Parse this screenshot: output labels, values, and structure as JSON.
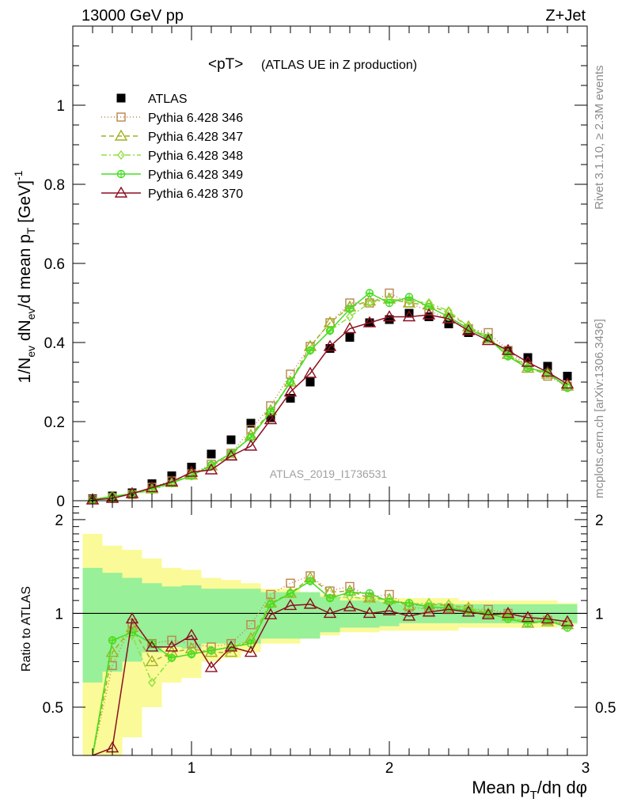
{
  "header": {
    "left": "13000 GeV pp",
    "right": "Z+Jet"
  },
  "side": {
    "rivet": "Rivet 3.1.10, ≥ 2.3M events",
    "mcplots": "mcplots.cern.ch [arXiv:1306.3436]"
  },
  "chart_data": [
    {
      "type": "scatter",
      "title": "<pT>",
      "subtitle": "(ATLAS UE in Z production)",
      "watermark": "ATLAS_2019_I1736531",
      "xlabel": "Mean p_T/dη dφ",
      "ylabel": "1/N_ev dN_ev/d mean p_T [GeV]^-1",
      "xlim": [
        0.4,
        3.0
      ],
      "ylim": [
        0.0,
        1.2
      ],
      "x_ticks": [
        "1",
        "2",
        "3"
      ],
      "y_ticks": [
        "0",
        "0.2",
        "0.4",
        "0.6",
        "0.8",
        "1"
      ],
      "legend_position": "top-left",
      "x": [
        0.5,
        0.6,
        0.7,
        0.8,
        0.9,
        1.0,
        1.1,
        1.2,
        1.3,
        1.4,
        1.5,
        1.6,
        1.7,
        1.8,
        1.9,
        2.0,
        2.1,
        2.2,
        2.3,
        2.4,
        2.5,
        2.6,
        2.7,
        2.8,
        2.9
      ],
      "series": [
        {
          "name": "ATLAS",
          "color": "#000000",
          "marker": "filled-square",
          "line": "none",
          "values": [
            0.005,
            0.012,
            0.02,
            0.043,
            0.063,
            0.085,
            0.118,
            0.154,
            0.196,
            0.21,
            0.259,
            0.3,
            0.385,
            0.413,
            0.45,
            0.458,
            0.474,
            0.465,
            0.447,
            0.425,
            0.41,
            0.38,
            0.362,
            0.34,
            0.315
          ]
        },
        {
          "name": "Pythia 6.428 346",
          "color": "#b8864e",
          "marker": "open-square",
          "line": "dotted",
          "values": [
            0.003,
            0.008,
            0.016,
            0.034,
            0.05,
            0.068,
            0.092,
            0.12,
            0.18,
            0.24,
            0.32,
            0.39,
            0.45,
            0.5,
            0.5,
            0.525,
            0.5,
            0.48,
            0.46,
            0.435,
            0.425,
            0.38,
            0.34,
            0.315,
            0.29
          ]
        },
        {
          "name": "Pythia 6.428 347",
          "color": "#a3b020",
          "marker": "open-triangle",
          "line": "dashed",
          "values": [
            0.003,
            0.009,
            0.018,
            0.03,
            0.046,
            0.065,
            0.088,
            0.114,
            0.165,
            0.228,
            0.3,
            0.39,
            0.45,
            0.49,
            0.505,
            0.51,
            0.5,
            0.495,
            0.475,
            0.44,
            0.41,
            0.37,
            0.335,
            0.32,
            0.29
          ]
        },
        {
          "name": "Pythia 6.428 348",
          "color": "#8fe040",
          "marker": "open-diamond",
          "line": "dashdot",
          "values": [
            0.003,
            0.01,
            0.017,
            0.026,
            0.045,
            0.063,
            0.09,
            0.12,
            0.16,
            0.225,
            0.3,
            0.38,
            0.43,
            0.465,
            0.5,
            0.51,
            0.505,
            0.5,
            0.48,
            0.44,
            0.415,
            0.37,
            0.34,
            0.32,
            0.29
          ]
        },
        {
          "name": "Pythia 6.428 349",
          "color": "#44dd22",
          "marker": "open-circle-cross",
          "line": "solid",
          "values": [
            0.003,
            0.011,
            0.018,
            0.03,
            0.045,
            0.063,
            0.09,
            0.12,
            0.16,
            0.225,
            0.3,
            0.38,
            0.43,
            0.485,
            0.525,
            0.5,
            0.515,
            0.49,
            0.465,
            0.435,
            0.41,
            0.365,
            0.335,
            0.325,
            0.285
          ]
        },
        {
          "name": "Pythia 6.428 370",
          "color": "#8b0f20",
          "marker": "open-triangle",
          "line": "solid",
          "values": [
            0.002,
            0.006,
            0.018,
            0.033,
            0.048,
            0.072,
            0.078,
            0.113,
            0.138,
            0.205,
            0.275,
            0.322,
            0.39,
            0.435,
            0.45,
            0.465,
            0.465,
            0.47,
            0.46,
            0.43,
            0.405,
            0.38,
            0.35,
            0.325,
            0.295
          ]
        }
      ]
    },
    {
      "type": "scatter",
      "ylabel": "Ratio to ATLAS",
      "xlim": [
        0.4,
        3.0
      ],
      "ylim": [
        0.35,
        2.3
      ],
      "y_ticks": [
        "0.5",
        "1",
        "2"
      ],
      "reference_line": 1,
      "x": [
        0.5,
        0.6,
        0.7,
        0.8,
        0.9,
        1.0,
        1.1,
        1.2,
        1.3,
        1.4,
        1.5,
        1.6,
        1.7,
        1.8,
        1.9,
        2.0,
        2.1,
        2.2,
        2.3,
        2.4,
        2.5,
        2.6,
        2.7,
        2.8,
        2.9
      ],
      "bands": {
        "inner": {
          "color": "#98f098",
          "low": [
            0.6,
            0.65,
            0.7,
            0.75,
            0.78,
            0.77,
            0.8,
            0.8,
            0.8,
            0.83,
            0.83,
            0.83,
            0.87,
            0.9,
            0.9,
            0.91,
            0.93,
            0.93,
            0.93,
            0.93,
            0.93,
            0.93,
            0.93,
            0.93,
            0.93
          ],
          "high": [
            1.4,
            1.35,
            1.3,
            1.25,
            1.22,
            1.23,
            1.2,
            1.2,
            1.2,
            1.17,
            1.17,
            1.17,
            1.13,
            1.1,
            1.1,
            1.09,
            1.07,
            1.07,
            1.07,
            1.07,
            1.07,
            1.07,
            1.07,
            1.07,
            1.07
          ]
        },
        "outer": {
          "color": "#fafa98",
          "low": [
            0.3,
            0.35,
            0.4,
            0.5,
            0.6,
            0.62,
            0.7,
            0.72,
            0.75,
            0.8,
            0.8,
            0.83,
            0.85,
            0.87,
            0.87,
            0.88,
            0.88,
            0.88,
            0.88,
            0.9,
            0.9,
            0.9,
            0.9,
            0.9,
            0.92
          ],
          "high": [
            1.8,
            1.65,
            1.6,
            1.5,
            1.4,
            1.38,
            1.3,
            1.28,
            1.25,
            1.2,
            1.2,
            1.17,
            1.15,
            1.13,
            1.13,
            1.12,
            1.12,
            1.12,
            1.12,
            1.1,
            1.1,
            1.1,
            1.1,
            1.1,
            1.08
          ]
        }
      },
      "series": [
        {
          "name": "Pythia 6.428 346",
          "color": "#b8864e",
          "marker": "open-square",
          "line": "dotted",
          "values": [
            0.3,
            0.68,
            0.93,
            0.8,
            0.82,
            0.8,
            0.78,
            0.8,
            0.92,
            1.15,
            1.25,
            1.32,
            1.18,
            1.22,
            1.13,
            1.15,
            1.05,
            1.03,
            1.04,
            1.03,
            1.03,
            1.0,
            0.96,
            0.95,
            0.92
          ]
        },
        {
          "name": "Pythia 6.428 347",
          "color": "#a3b020",
          "marker": "open-triangle",
          "line": "dashed",
          "values": [
            0.3,
            0.75,
            0.9,
            0.7,
            0.75,
            0.77,
            0.75,
            0.75,
            0.83,
            1.08,
            1.16,
            1.3,
            1.17,
            1.18,
            1.12,
            1.11,
            1.06,
            1.07,
            1.06,
            1.04,
            1.0,
            0.98,
            0.93,
            0.94,
            0.92
          ]
        },
        {
          "name": "Pythia 6.428 348",
          "color": "#8fe040",
          "marker": "open-diamond",
          "line": "dashdot",
          "values": [
            0.3,
            0.82,
            0.85,
            0.6,
            0.72,
            0.74,
            0.76,
            0.78,
            0.82,
            1.07,
            1.16,
            1.27,
            1.12,
            1.13,
            1.11,
            1.11,
            1.07,
            1.08,
            1.07,
            1.04,
            1.01,
            0.97,
            0.94,
            0.94,
            0.92
          ]
        },
        {
          "name": "Pythia 6.428 349",
          "color": "#44dd22",
          "marker": "open-circle-cross",
          "line": "solid",
          "values": [
            0.3,
            0.82,
            0.87,
            0.8,
            0.72,
            0.74,
            0.76,
            0.78,
            0.8,
            1.07,
            1.16,
            1.27,
            1.12,
            1.17,
            1.16,
            1.09,
            1.08,
            1.05,
            1.04,
            1.02,
            1.0,
            0.96,
            0.93,
            0.95,
            0.9
          ]
        },
        {
          "name": "Pythia 6.428 370",
          "color": "#8b0f20",
          "marker": "open-triangle",
          "line": "solid",
          "values": [
            0.3,
            0.37,
            0.96,
            0.78,
            0.78,
            0.85,
            0.67,
            0.78,
            0.75,
            0.99,
            1.06,
            1.07,
            1.0,
            1.05,
            1.0,
            1.02,
            0.98,
            1.01,
            1.03,
            1.01,
            0.99,
            1.0,
            0.97,
            0.96,
            0.94
          ]
        }
      ]
    }
  ]
}
